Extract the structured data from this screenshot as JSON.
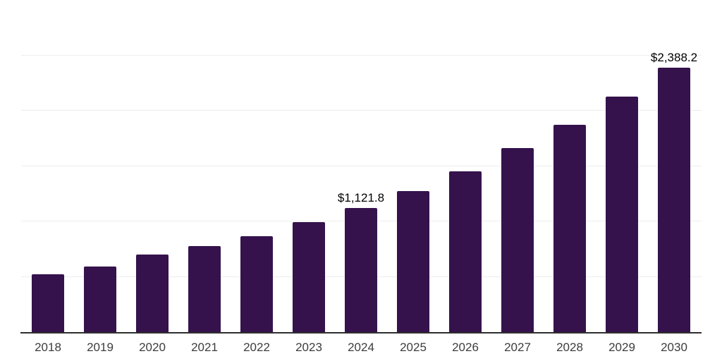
{
  "chart_data": {
    "type": "bar",
    "title": "",
    "xlabel": "",
    "ylabel": "",
    "categories": [
      "2018",
      "2019",
      "2020",
      "2021",
      "2022",
      "2023",
      "2024",
      "2025",
      "2026",
      "2027",
      "2028",
      "2029",
      "2030"
    ],
    "values": [
      525,
      595,
      700,
      777,
      868,
      995,
      1121.8,
      1277,
      1455,
      1660,
      1870,
      2125,
      2388.2
    ],
    "value_labels": {
      "2024": "$1,121.8",
      "2030": "$2,388.2"
    },
    "ylim": [
      0,
      3000
    ],
    "gridline_step": 500,
    "grid": "horizontal-only",
    "y_axis_tick_labels": "none",
    "legend": "none",
    "colors": {
      "bar": "#35124c",
      "gridline": "#ededed",
      "axis_line": "#2e2e2e",
      "tick_label": "#3c3c3c",
      "value_label": "#000000",
      "background": "#ffffff"
    }
  }
}
